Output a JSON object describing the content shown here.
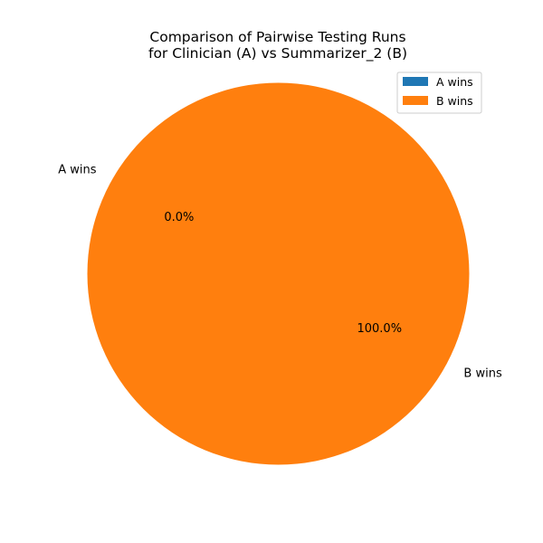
{
  "chart_data": {
    "type": "pie",
    "title": [
      "Comparison of Pairwise Testing Runs",
      "for Clinician (A) vs Summarizer_2 (B)"
    ],
    "categories": [
      "A wins",
      "B wins"
    ],
    "values": [
      0,
      100
    ],
    "percent_labels": [
      "0.0%",
      "100.0%"
    ],
    "colors": [
      "#1f77b4",
      "#ff7f0e"
    ],
    "start_angle_deg": 90,
    "direction": "counterclockwise",
    "legend": {
      "placement": "top-right",
      "entries": [
        "A wins",
        "B wins"
      ]
    }
  }
}
